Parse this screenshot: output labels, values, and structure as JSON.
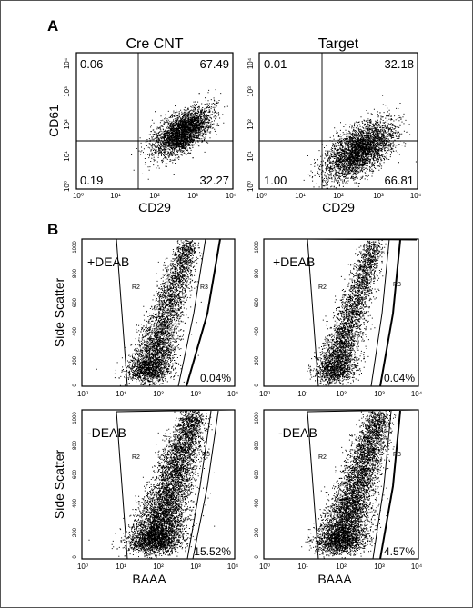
{
  "panel_a": {
    "letter": "A",
    "x_axis_title": "CD29",
    "y_axis_title": "CD61",
    "x_ticks": [
      "10⁰",
      "10¹",
      "10²",
      "10³",
      "10⁴"
    ],
    "y_ticks": [
      "10⁰",
      "10¹",
      "10²",
      "10³",
      "10⁴"
    ],
    "plots": [
      {
        "title": "Cre CNT",
        "upper_left": "0.06",
        "upper_right": "67.49",
        "lower_left": "0.19",
        "lower_right": "32.27"
      },
      {
        "title": "Target",
        "upper_left": "0.01",
        "upper_right": "32.18",
        "lower_left": "1.00",
        "lower_right": "66.81"
      }
    ]
  },
  "panel_b": {
    "letter": "B",
    "y_axis_title": "Side Scatter",
    "x_axis_title": "BAAA",
    "x_ticks": [
      "10⁰",
      "10¹",
      "10²",
      "10³",
      "10⁴"
    ],
    "y_ticks": [
      "1000",
      "800",
      "600",
      "400",
      "200",
      "0"
    ],
    "gate_left": "R2",
    "gate_right": "R3",
    "plots": [
      {
        "condition": "+DEAB",
        "percent": "0.04%"
      },
      {
        "condition": "+DEAB",
        "percent": "0.04%"
      },
      {
        "condition": "-DEAB",
        "percent": "15.52%"
      },
      {
        "condition": "-DEAB",
        "percent": "4.57%"
      }
    ]
  },
  "colors": {
    "border": "#555555",
    "ink": "#000000",
    "background": "#ffffff"
  }
}
